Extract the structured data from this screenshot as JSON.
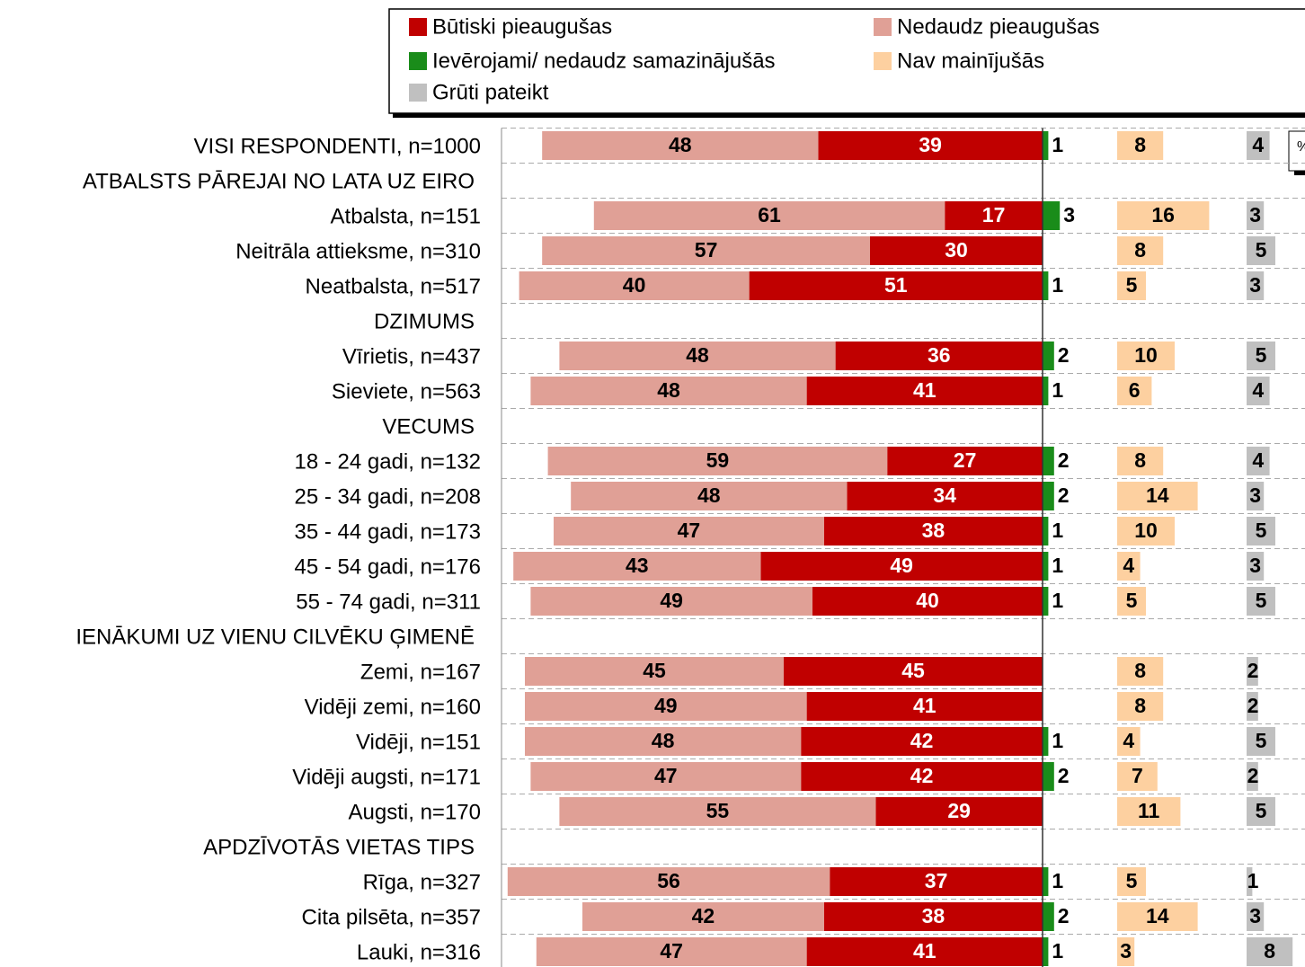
{
  "chart_data": {
    "type": "diverging-bar",
    "annotation": "%",
    "categories": [
      "VISI RESPONDENTI, n=1000",
      "ATBALSTS PĀREJAI NO LATA UZ EIRO",
      "Atbalsta, n=151",
      "Neitrāla attieksme, n=310",
      "Neatbalsta, n=517",
      "DZIMUMS",
      "Vīrietis, n=437",
      "Sieviete, n=563",
      "VECUMS",
      "18 - 24 gadi, n=132",
      "25 - 34 gadi, n=208",
      "35 - 44 gadi, n=173",
      "45 - 54 gadi, n=176",
      "55 - 74 gadi, n=311",
      "IENĀKUMI UZ VIENU CILVĒKU ĢIMENĒ",
      "Zemi, n=167",
      "Vidēji zemi, n=160",
      "Vidēji, n=151",
      "Vidēji augsti, n=171",
      "Augsti, n=170",
      "APDZĪVOTĀS VIETAS TIPS",
      "Rīga, n=327",
      "Cita pilsēta, n=357",
      "Lauki, n=316"
    ],
    "series": [
      {
        "name": "Būtiski pieaugušas",
        "color": "#c00000",
        "values": [
          39,
          null,
          17,
          30,
          51,
          null,
          36,
          41,
          null,
          27,
          34,
          38,
          49,
          40,
          null,
          45,
          41,
          42,
          42,
          29,
          null,
          37,
          38,
          41
        ]
      },
      {
        "name": "Nedaudz pieaugušas",
        "color": "#e0a096",
        "values": [
          48,
          null,
          61,
          57,
          40,
          null,
          48,
          48,
          null,
          59,
          48,
          47,
          43,
          49,
          null,
          45,
          49,
          48,
          47,
          55,
          null,
          56,
          42,
          47
        ]
      },
      {
        "name": "Ievērojami/ nedaudz samazinājušās",
        "color": "#1a8c1a",
        "values": [
          1,
          null,
          3,
          null,
          1,
          null,
          2,
          1,
          null,
          2,
          2,
          1,
          1,
          1,
          null,
          null,
          null,
          1,
          2,
          null,
          null,
          1,
          2,
          1
        ]
      },
      {
        "name": "Nav mainījušās",
        "color": "#fdd0a0",
        "values": [
          8,
          null,
          16,
          8,
          5,
          null,
          10,
          6,
          null,
          8,
          14,
          10,
          4,
          5,
          null,
          8,
          8,
          4,
          7,
          11,
          null,
          5,
          14,
          3
        ]
      },
      {
        "name": "Grūti pateikt",
        "color": "#c0c0c0",
        "values": [
          4,
          null,
          3,
          5,
          3,
          null,
          5,
          4,
          null,
          4,
          3,
          5,
          3,
          5,
          null,
          2,
          2,
          5,
          2,
          5,
          null,
          1,
          3,
          8
        ]
      }
    ],
    "grid": true
  }
}
